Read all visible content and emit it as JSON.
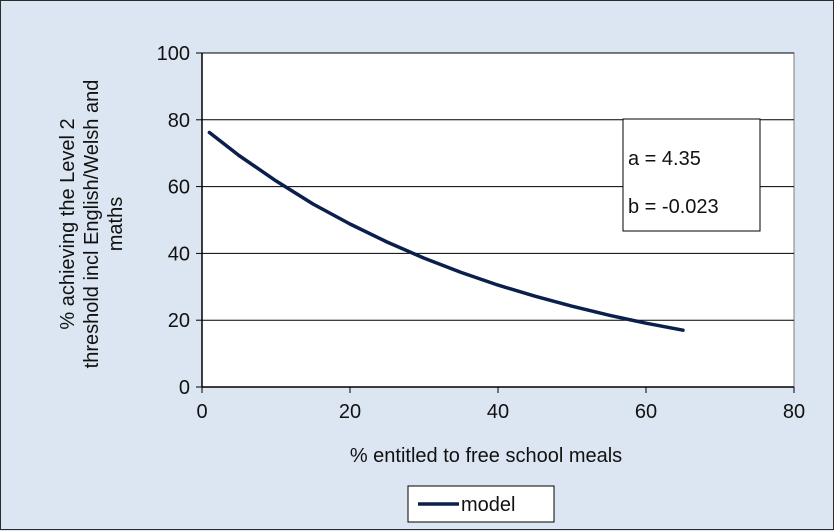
{
  "chart_data": {
    "type": "line",
    "xlabel": "% entitled to free school meals",
    "ylabel_lines": [
      "% achieving the Level 2",
      "threshold incl English/Welsh and",
      "maths"
    ],
    "xlim": [
      0,
      80
    ],
    "ylim": [
      0,
      100
    ],
    "xticks": [
      0,
      20,
      40,
      60,
      80
    ],
    "yticks": [
      0,
      20,
      40,
      60,
      80,
      100
    ],
    "grid": "horizontal",
    "legend_position": "bottom",
    "annotations": [
      "a = 4.35",
      "b = -0.023"
    ],
    "series": [
      {
        "name": "model",
        "color": "#0b1f4d",
        "x": [
          1,
          5,
          10,
          15,
          20,
          25,
          30,
          35,
          40,
          45,
          50,
          55,
          60,
          65
        ],
        "y": [
          76.2,
          69.3,
          61.7,
          54.8,
          48.8,
          43.4,
          38.6,
          34.3,
          30.5,
          27.2,
          24.2,
          21.5,
          19.1,
          17.0
        ]
      }
    ]
  }
}
